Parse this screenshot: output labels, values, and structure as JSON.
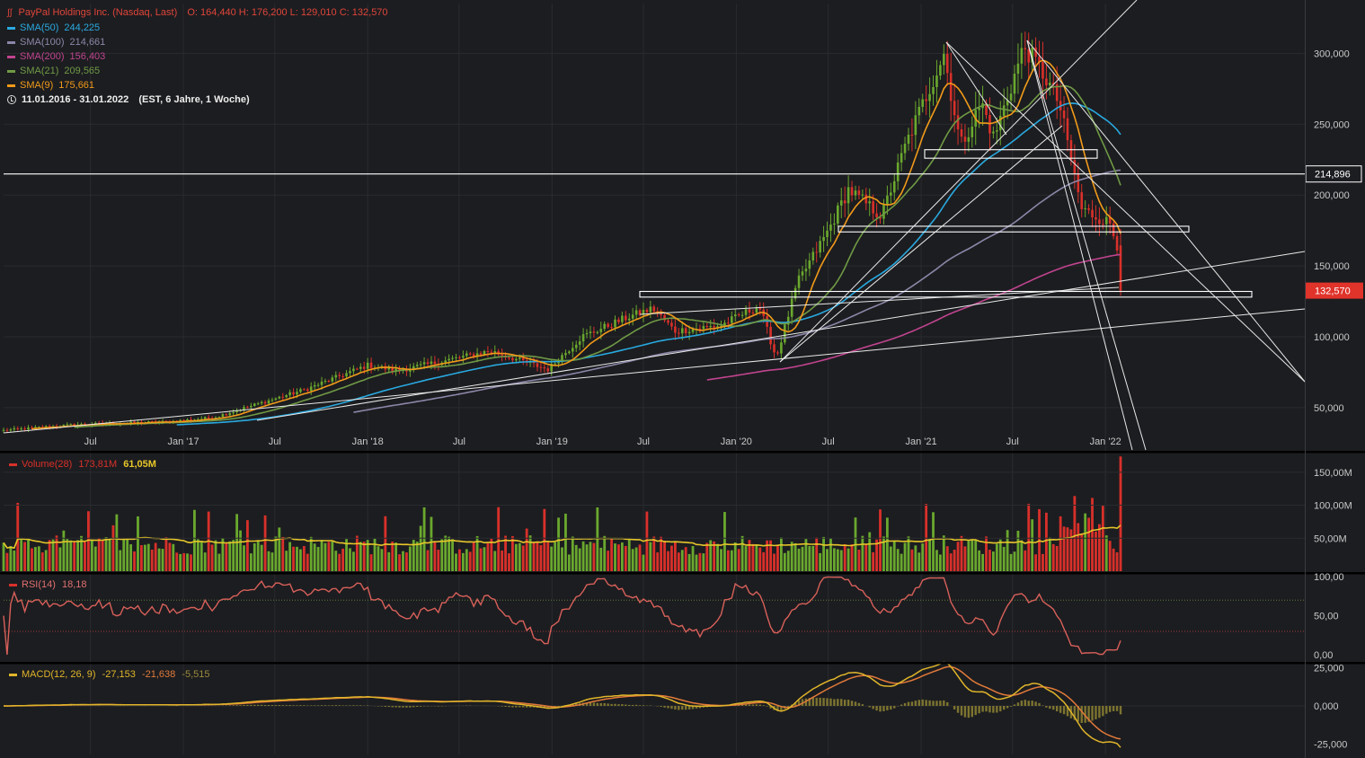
{
  "instrument": {
    "title": "PayPal Holdings Inc. (Nasdaq, Last)",
    "ohlc": "O: 164,440  H: 176,200  L: 129,010  C: 132,570",
    "range": "11.01.2016 - 31.01.2022",
    "range_info": "(EST, 6 Jahre, 1 Woche)"
  },
  "indicators": [
    {
      "label": "SMA(50)",
      "value": "244,225",
      "color": "#29a9e0"
    },
    {
      "label": "SMA(100)",
      "value": "214,661",
      "color": "#8c86a8"
    },
    {
      "label": "SMA(200)",
      "value": "156,403",
      "color": "#c0448f"
    },
    {
      "label": "SMA(21)",
      "value": "209,565",
      "color": "#6f9a45"
    },
    {
      "label": "SMA(9)",
      "value": "175,661",
      "color": "#f19a1a"
    }
  ],
  "price_axis": {
    "ticks": [
      "300,000",
      "250,000",
      "200,000",
      "150,000",
      "100,000",
      "50,000"
    ],
    "current_label": "132,570",
    "line_label": "214,896"
  },
  "time_axis": [
    "Jul",
    "Jan '17",
    "Jul",
    "Jan '18",
    "Jul",
    "Jan '19",
    "Jul",
    "Jan '20",
    "Jul",
    "Jan '21",
    "Jul",
    "Jan '22"
  ],
  "volume": {
    "label": "Volume(28)",
    "value1": "173,81M",
    "value2": "61,05M",
    "ticks": [
      "150,00M",
      "100,00M",
      "50,00M"
    ]
  },
  "rsi": {
    "label": "RSI(14)",
    "value": "18,18",
    "ticks": [
      "100,00",
      "50,00",
      "0,00"
    ]
  },
  "macd": {
    "label": "MACD(12, 26, 9)",
    "v1": "-27,153",
    "v2": "-21,638",
    "v3": "-5,515",
    "ticks": [
      "25,000",
      "0,000",
      "-25,000"
    ]
  },
  "colors": {
    "up": "#6aa82e",
    "down": "#d9302a",
    "bg": "#1c1d20",
    "grid": "#2a2b2f",
    "text": "#c9c9c9"
  },
  "chart_data": {
    "type": "candlestick",
    "period": "weekly",
    "x_range": [
      "2016-01-11",
      "2022-01-31"
    ],
    "ylim": [
      30,
      325
    ],
    "anchors": [
      {
        "date": "2016-01-11",
        "close": 34
      },
      {
        "date": "2016-06-01",
        "close": 38
      },
      {
        "date": "2016-12-01",
        "close": 40
      },
      {
        "date": "2017-03-01",
        "close": 43
      },
      {
        "date": "2017-06-01",
        "close": 53
      },
      {
        "date": "2017-09-01",
        "close": 63
      },
      {
        "date": "2018-01-01",
        "close": 80
      },
      {
        "date": "2018-03-01",
        "close": 76
      },
      {
        "date": "2018-06-01",
        "close": 83
      },
      {
        "date": "2018-09-01",
        "close": 90
      },
      {
        "date": "2018-12-24",
        "close": 77
      },
      {
        "date": "2019-03-01",
        "close": 100
      },
      {
        "date": "2019-06-01",
        "close": 114
      },
      {
        "date": "2019-07-20",
        "close": 120
      },
      {
        "date": "2019-09-01",
        "close": 104
      },
      {
        "date": "2019-12-01",
        "close": 108
      },
      {
        "date": "2020-02-15",
        "close": 122
      },
      {
        "date": "2020-03-20",
        "close": 85
      },
      {
        "date": "2020-05-01",
        "close": 138
      },
      {
        "date": "2020-07-01",
        "close": 175
      },
      {
        "date": "2020-08-10",
        "close": 204
      },
      {
        "date": "2020-10-15",
        "close": 185
      },
      {
        "date": "2020-12-01",
        "close": 235
      },
      {
        "date": "2021-02-15",
        "close": 300
      },
      {
        "date": "2021-03-20",
        "close": 235
      },
      {
        "date": "2021-05-01",
        "close": 265
      },
      {
        "date": "2021-05-25",
        "close": 240
      },
      {
        "date": "2021-07-24",
        "close": 305
      },
      {
        "date": "2021-09-01",
        "close": 285
      },
      {
        "date": "2021-10-01",
        "close": 265
      },
      {
        "date": "2021-11-15",
        "close": 190
      },
      {
        "date": "2022-01-10",
        "close": 180
      },
      {
        "date": "2022-01-24",
        "close": 165
      },
      {
        "date": "2022-01-31",
        "close": 132.57
      }
    ],
    "last_bar": {
      "open": 164.44,
      "high": 176.2,
      "low": 129.01,
      "close": 132.57
    },
    "sma_last": {
      "SMA(50)": 244.225,
      "SMA(100)": 214.661,
      "SMA(200)": 156.403,
      "SMA(21)": 209.565,
      "SMA(9)": 175.661
    },
    "horizontal_line": 214.896,
    "support_boxes": [
      [
        128,
        132
      ],
      [
        174,
        178
      ],
      [
        226,
        232
      ]
    ],
    "volume_last": 173.81,
    "rsi_last": 18.18,
    "macd_last": {
      "macd": -27.153,
      "signal": -21.638,
      "hist": -5.515
    }
  }
}
